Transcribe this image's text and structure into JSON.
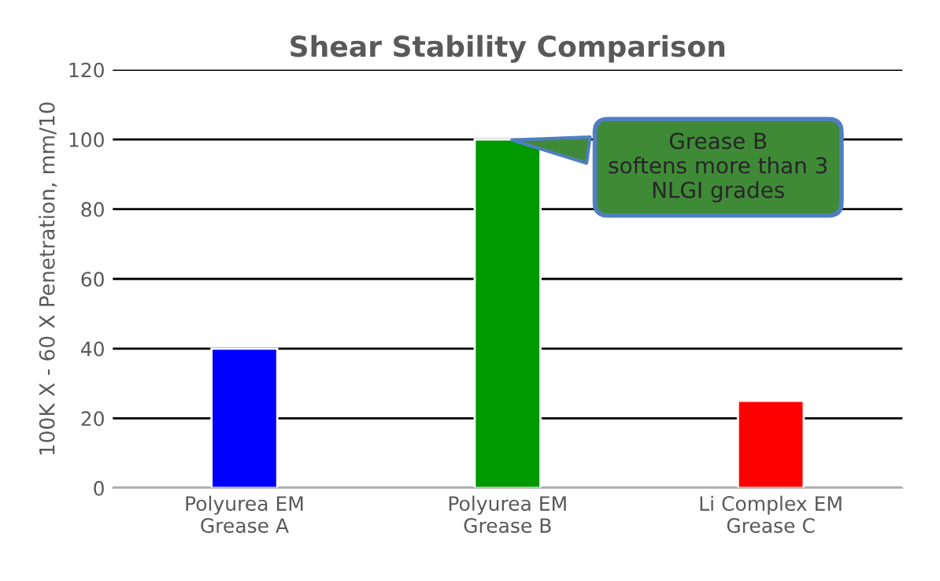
{
  "chart_data": {
    "type": "bar",
    "title": "Shear Stability Comparison",
    "ylabel": "100K X - 60 X Penetration, mm/10",
    "categories": [
      "Polyurea EM\nGrease A",
      "Polyurea EM\nGrease B",
      "Li Complex EM\nGrease C"
    ],
    "values": [
      40,
      100,
      25
    ],
    "colors": [
      "#0000ff",
      "#009900",
      "#ff0000"
    ],
    "ylim": [
      0,
      120
    ],
    "yticks": [
      0,
      20,
      40,
      60,
      80,
      100,
      120
    ],
    "grid": "y",
    "annotations": [
      {
        "text": "Grease B\nsoftens more than 3\nNLGI grades",
        "x": "Polyurea EM\nGrease B",
        "y": 100
      }
    ]
  }
}
